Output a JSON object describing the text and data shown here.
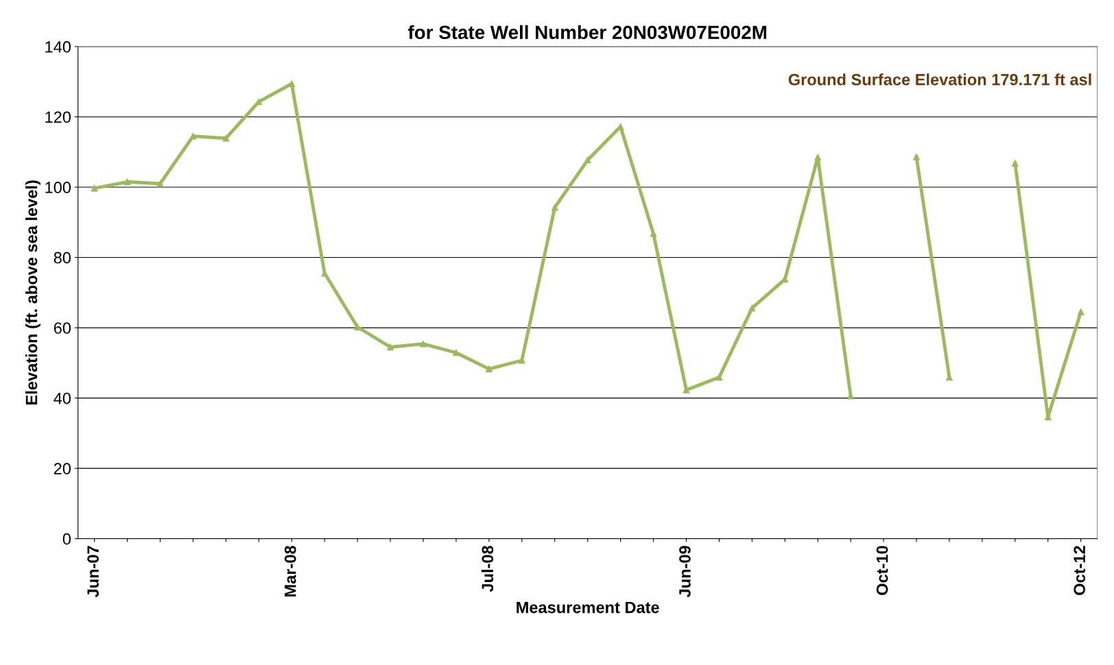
{
  "chart_data": {
    "type": "line",
    "title": "for State Well Number 20N03W07E002M",
    "xlabel": "Measurement Date",
    "ylabel": "Elevation (ft. above sea level)",
    "annotations": [
      "Ground Surface Elevation 179.171 ft asl"
    ],
    "categories": [
      "Jun-07",
      null,
      null,
      null,
      null,
      null,
      "Mar-08",
      null,
      null,
      null,
      null,
      null,
      "Jul-08",
      null,
      null,
      null,
      null,
      null,
      "Jun-09",
      null,
      null,
      null,
      null,
      null,
      "Oct-10",
      null,
      null,
      null,
      null,
      null,
      "Oct-12"
    ],
    "series": [
      {
        "color": "#9bbb59",
        "values": [
          99.7,
          101.5,
          101,
          114.5,
          113.9,
          124.3,
          129.4,
          75.5,
          60.2,
          54.5,
          55.4,
          52.9,
          48.3,
          50.7,
          94.2,
          107.7,
          117.2,
          86.8,
          42.3,
          45.9,
          65.6,
          73.8,
          108.5,
          40.6,
          null,
          108.6,
          45.9,
          null,
          106.8,
          34.6,
          64.5
        ]
      }
    ],
    "ylim": [
      0,
      140
    ],
    "yticks": [
      0,
      20,
      40,
      60,
      80,
      100,
      120,
      140
    ],
    "grid": "y",
    "marker": "triangle",
    "line_style": "solid"
  }
}
